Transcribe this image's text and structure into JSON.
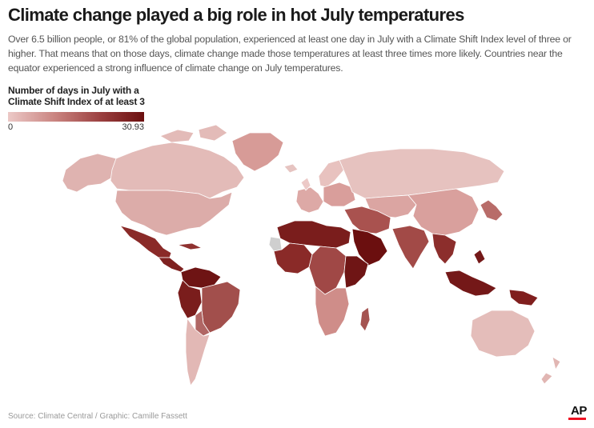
{
  "header": {
    "title": "Climate change played a big role in hot July temperatures",
    "subtitle": "Over 6.5 billion people, or 81% of the global population, experienced at least one day in July with a Climate Shift Index level of three or higher. That means that on those days, climate change made those temperatures at least three times more likely. Countries near the equator experienced a strong influence of climate change on July temperatures."
  },
  "legend": {
    "title_line1": "Number of days in July with a",
    "title_line2": "Climate Shift Index of at least 3",
    "min_label": "0",
    "max_label": "30.93",
    "min_value": 0,
    "max_value": 30.93,
    "color_low": "#ecc9c7",
    "color_high": "#6b0f0f"
  },
  "footer": {
    "source": "Source: Climate Central / Graphic: Camille Fassett",
    "logo": "AP"
  }
}
